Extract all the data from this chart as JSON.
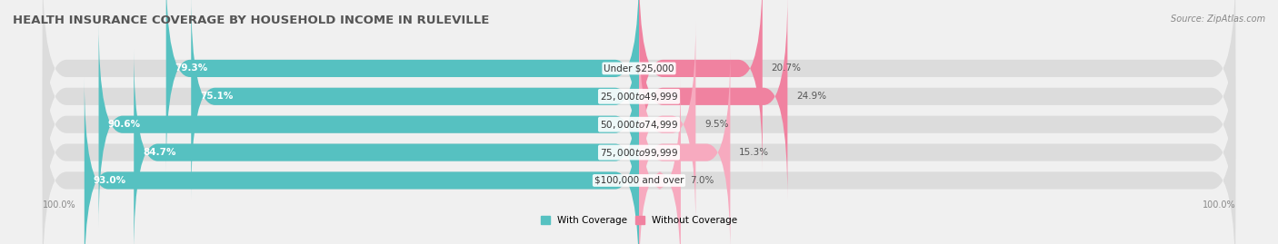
{
  "title": "HEALTH INSURANCE COVERAGE BY HOUSEHOLD INCOME IN RULEVILLE",
  "source": "Source: ZipAtlas.com",
  "categories": [
    "Under $25,000",
    "$25,000 to $49,999",
    "$50,000 to $74,999",
    "$75,000 to $99,999",
    "$100,000 and over"
  ],
  "with_coverage": [
    79.3,
    75.1,
    90.6,
    84.7,
    93.0
  ],
  "without_coverage": [
    20.7,
    24.9,
    9.5,
    15.3,
    7.0
  ],
  "color_with": "#56C1C1",
  "color_without": "#F082A0",
  "color_without_light": "#F7AABF",
  "bg_color": "#f0f0f0",
  "bar_bg": "#dcdcdc",
  "title_fontsize": 9.5,
  "label_fontsize": 7.5,
  "cat_fontsize": 7.5,
  "pct_fontsize": 7.5,
  "tick_fontsize": 7.0,
  "legend_fontsize": 7.5,
  "bottom_labels": [
    "100.0%",
    "100.0%"
  ]
}
